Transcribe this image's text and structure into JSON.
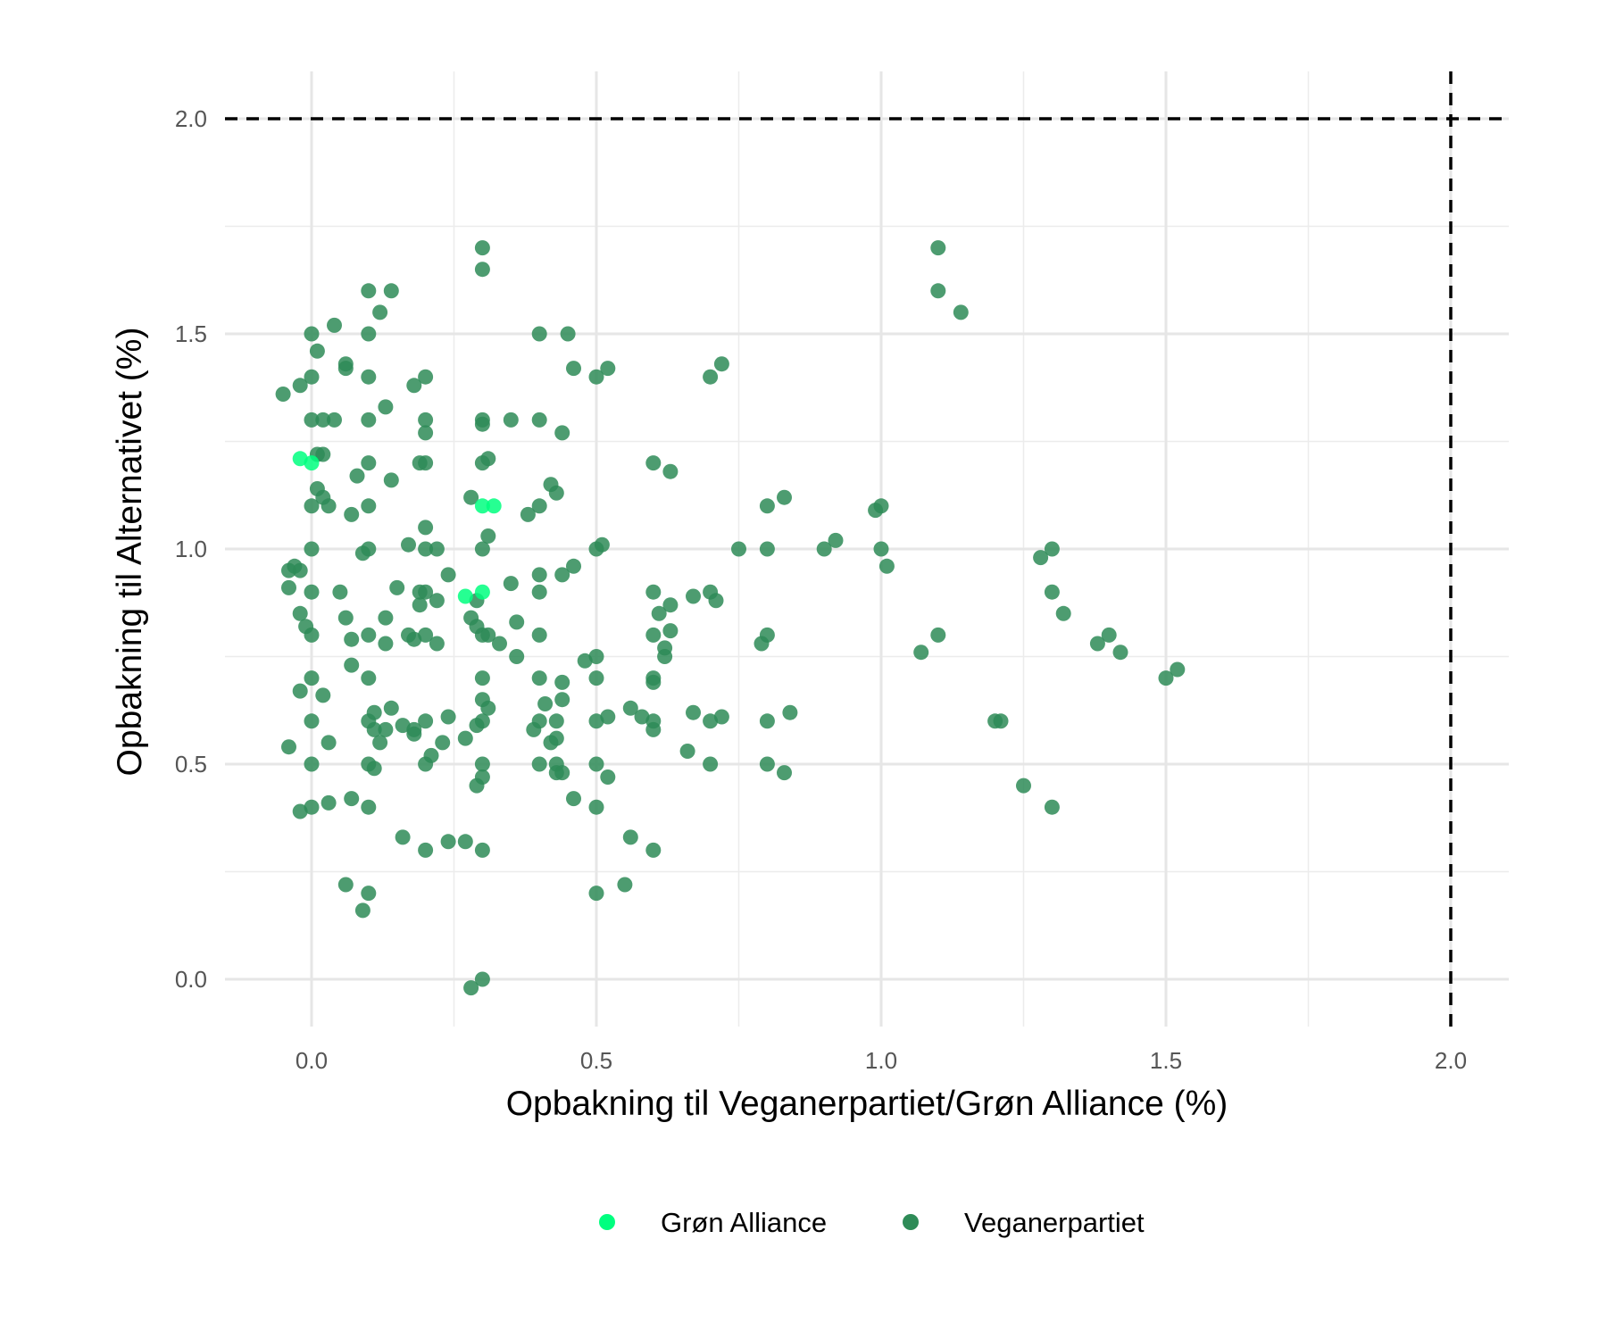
{
  "chart_data": {
    "type": "scatter",
    "xlabel": "Opbakning til Veganerpartiet/Grøn Alliance (%)",
    "ylabel": "Opbakning til Alternativet (%)",
    "xlim": [
      -0.15,
      2.1
    ],
    "ylim": [
      -0.15,
      2.1
    ],
    "x_ticks": [
      "0.0",
      "0.5",
      "1.0",
      "1.5",
      "2.0"
    ],
    "y_ticks": [
      "0.0",
      "0.5",
      "1.0",
      "1.5",
      "2.0"
    ],
    "x_tick_values": [
      0,
      0.5,
      1,
      1.5,
      2
    ],
    "y_tick_values": [
      0,
      0.5,
      1,
      1.5,
      2
    ],
    "grid": true,
    "reference_lines": [
      {
        "orientation": "horizontal",
        "value": 2.0,
        "style": "dashed"
      },
      {
        "orientation": "vertical",
        "value": 2.0,
        "style": "dashed"
      }
    ],
    "legend_position": "bottom",
    "series": [
      {
        "name": "Grøn Alliance",
        "color": "#00FF7F",
        "points": [
          [
            -0.02,
            1.21
          ],
          [
            0.0,
            1.2
          ],
          [
            0.3,
            1.1
          ],
          [
            0.32,
            1.1
          ],
          [
            0.27,
            0.89
          ],
          [
            0.3,
            0.9
          ]
        ]
      },
      {
        "name": "Veganerpartiet",
        "color": "#2E8B57",
        "points": [
          [
            -0.05,
            1.36
          ],
          [
            -0.02,
            1.38
          ],
          [
            0.0,
            1.4
          ],
          [
            0.0,
            1.5
          ],
          [
            0.01,
            1.46
          ],
          [
            0.0,
            1.3
          ],
          [
            0.02,
            1.3
          ],
          [
            0.04,
            1.3
          ],
          [
            0.01,
            1.22
          ],
          [
            0.02,
            1.22
          ],
          [
            0.01,
            1.14
          ],
          [
            0.0,
            1.1
          ],
          [
            0.02,
            1.12
          ],
          [
            0.03,
            1.1
          ],
          [
            0.0,
            1.0
          ],
          [
            -0.04,
            0.95
          ],
          [
            -0.03,
            0.96
          ],
          [
            -0.02,
            0.95
          ],
          [
            -0.04,
            0.91
          ],
          [
            0.0,
            0.9
          ],
          [
            -0.02,
            0.85
          ],
          [
            -0.01,
            0.82
          ],
          [
            0.0,
            0.8
          ],
          [
            -0.02,
            0.67
          ],
          [
            0.0,
            0.7
          ],
          [
            0.02,
            0.66
          ],
          [
            0.0,
            0.6
          ],
          [
            -0.04,
            0.54
          ],
          [
            0.03,
            0.55
          ],
          [
            0.0,
            0.5
          ],
          [
            -0.02,
            0.39
          ],
          [
            0.0,
            0.4
          ],
          [
            0.03,
            0.41
          ],
          [
            0.04,
            1.52
          ],
          [
            0.06,
            1.43
          ],
          [
            0.06,
            1.42
          ],
          [
            0.1,
            1.6
          ],
          [
            0.1,
            1.5
          ],
          [
            0.12,
            1.55
          ],
          [
            0.14,
            1.6
          ],
          [
            0.1,
            1.4
          ],
          [
            0.13,
            1.33
          ],
          [
            0.1,
            1.3
          ],
          [
            0.18,
            1.38
          ],
          [
            0.2,
            1.4
          ],
          [
            0.2,
            1.3
          ],
          [
            0.2,
            1.27
          ],
          [
            0.19,
            1.2
          ],
          [
            0.2,
            1.2
          ],
          [
            0.1,
            1.2
          ],
          [
            0.08,
            1.17
          ],
          [
            0.14,
            1.16
          ],
          [
            0.1,
            1.1
          ],
          [
            0.07,
            1.08
          ],
          [
            0.2,
            1.05
          ],
          [
            0.17,
            1.01
          ],
          [
            0.09,
            0.99
          ],
          [
            0.1,
            1.0
          ],
          [
            0.2,
            1.0
          ],
          [
            0.22,
            1.0
          ],
          [
            0.24,
            0.94
          ],
          [
            0.15,
            0.91
          ],
          [
            0.05,
            0.9
          ],
          [
            0.19,
            0.9
          ],
          [
            0.2,
            0.9
          ],
          [
            0.19,
            0.87
          ],
          [
            0.22,
            0.88
          ],
          [
            0.06,
            0.84
          ],
          [
            0.13,
            0.84
          ],
          [
            0.1,
            0.8
          ],
          [
            0.17,
            0.8
          ],
          [
            0.18,
            0.79
          ],
          [
            0.2,
            0.8
          ],
          [
            0.07,
            0.79
          ],
          [
            0.13,
            0.78
          ],
          [
            0.22,
            0.78
          ],
          [
            0.07,
            0.73
          ],
          [
            0.1,
            0.7
          ],
          [
            0.1,
            0.6
          ],
          [
            0.11,
            0.62
          ],
          [
            0.14,
            0.63
          ],
          [
            0.11,
            0.58
          ],
          [
            0.13,
            0.58
          ],
          [
            0.12,
            0.55
          ],
          [
            0.16,
            0.59
          ],
          [
            0.18,
            0.58
          ],
          [
            0.18,
            0.57
          ],
          [
            0.2,
            0.6
          ],
          [
            0.21,
            0.52
          ],
          [
            0.23,
            0.55
          ],
          [
            0.24,
            0.61
          ],
          [
            0.1,
            0.5
          ],
          [
            0.11,
            0.49
          ],
          [
            0.2,
            0.5
          ],
          [
            0.07,
            0.42
          ],
          [
            0.1,
            0.4
          ],
          [
            0.16,
            0.33
          ],
          [
            0.2,
            0.3
          ],
          [
            0.24,
            0.32
          ],
          [
            0.27,
            0.32
          ],
          [
            0.06,
            0.22
          ],
          [
            0.1,
            0.2
          ],
          [
            0.09,
            0.16
          ],
          [
            0.3,
            1.7
          ],
          [
            0.3,
            1.65
          ],
          [
            0.3,
            1.3
          ],
          [
            0.3,
            1.29
          ],
          [
            0.31,
            1.21
          ],
          [
            0.3,
            1.2
          ],
          [
            0.28,
            1.12
          ],
          [
            0.31,
            1.03
          ],
          [
            0.3,
            1.0
          ],
          [
            0.29,
            0.88
          ],
          [
            0.28,
            0.84
          ],
          [
            0.29,
            0.82
          ],
          [
            0.3,
            0.8
          ],
          [
            0.31,
            0.8
          ],
          [
            0.33,
            0.78
          ],
          [
            0.36,
            0.83
          ],
          [
            0.36,
            0.75
          ],
          [
            0.3,
            0.7
          ],
          [
            0.3,
            0.65
          ],
          [
            0.31,
            0.63
          ],
          [
            0.3,
            0.6
          ],
          [
            0.29,
            0.59
          ],
          [
            0.27,
            0.56
          ],
          [
            0.3,
            0.5
          ],
          [
            0.3,
            0.47
          ],
          [
            0.29,
            0.45
          ],
          [
            0.3,
            0.3
          ],
          [
            0.28,
            -0.02
          ],
          [
            0.3,
            0.0
          ],
          [
            0.35,
            1.3
          ],
          [
            0.4,
            1.5
          ],
          [
            0.4,
            1.3
          ],
          [
            0.44,
            1.27
          ],
          [
            0.45,
            1.5
          ],
          [
            0.46,
            1.42
          ],
          [
            0.42,
            1.15
          ],
          [
            0.43,
            1.13
          ],
          [
            0.38,
            1.08
          ],
          [
            0.4,
            1.1
          ],
          [
            0.35,
            0.92
          ],
          [
            0.4,
            0.94
          ],
          [
            0.4,
            0.9
          ],
          [
            0.44,
            0.94
          ],
          [
            0.46,
            0.96
          ],
          [
            0.4,
            0.8
          ],
          [
            0.4,
            0.7
          ],
          [
            0.44,
            0.69
          ],
          [
            0.44,
            0.65
          ],
          [
            0.41,
            0.64
          ],
          [
            0.4,
            0.6
          ],
          [
            0.39,
            0.58
          ],
          [
            0.43,
            0.6
          ],
          [
            0.42,
            0.55
          ],
          [
            0.43,
            0.56
          ],
          [
            0.4,
            0.5
          ],
          [
            0.43,
            0.5
          ],
          [
            0.43,
            0.48
          ],
          [
            0.44,
            0.48
          ],
          [
            0.46,
            0.42
          ],
          [
            0.5,
            1.4
          ],
          [
            0.52,
            1.42
          ],
          [
            0.5,
            1.0
          ],
          [
            0.51,
            1.01
          ],
          [
            0.48,
            0.74
          ],
          [
            0.5,
            0.75
          ],
          [
            0.5,
            0.7
          ],
          [
            0.5,
            0.6
          ],
          [
            0.52,
            0.61
          ],
          [
            0.56,
            0.63
          ],
          [
            0.5,
            0.5
          ],
          [
            0.52,
            0.47
          ],
          [
            0.5,
            0.4
          ],
          [
            0.56,
            0.33
          ],
          [
            0.5,
            0.2
          ],
          [
            0.55,
            0.22
          ],
          [
            0.6,
            1.2
          ],
          [
            0.63,
            1.18
          ],
          [
            0.6,
            0.9
          ],
          [
            0.63,
            0.87
          ],
          [
            0.61,
            0.85
          ],
          [
            0.6,
            0.8
          ],
          [
            0.63,
            0.81
          ],
          [
            0.62,
            0.77
          ],
          [
            0.62,
            0.75
          ],
          [
            0.6,
            0.7
          ],
          [
            0.6,
            0.69
          ],
          [
            0.58,
            0.61
          ],
          [
            0.6,
            0.6
          ],
          [
            0.6,
            0.58
          ],
          [
            0.6,
            0.3
          ],
          [
            0.7,
            1.4
          ],
          [
            0.72,
            1.43
          ],
          [
            0.67,
            0.89
          ],
          [
            0.7,
            0.9
          ],
          [
            0.71,
            0.88
          ],
          [
            0.67,
            0.62
          ],
          [
            0.7,
            0.6
          ],
          [
            0.72,
            0.61
          ],
          [
            0.66,
            0.53
          ],
          [
            0.7,
            0.5
          ],
          [
            0.75,
            1.0
          ],
          [
            0.8,
            1.1
          ],
          [
            0.83,
            1.12
          ],
          [
            0.8,
            1.0
          ],
          [
            0.8,
            0.8
          ],
          [
            0.79,
            0.78
          ],
          [
            0.8,
            0.6
          ],
          [
            0.84,
            0.62
          ],
          [
            0.8,
            0.5
          ],
          [
            0.83,
            0.48
          ],
          [
            0.9,
            1.0
          ],
          [
            0.92,
            1.02
          ],
          [
            0.99,
            1.09
          ],
          [
            1.0,
            1.1
          ],
          [
            1.0,
            1.0
          ],
          [
            1.01,
            0.96
          ],
          [
            1.1,
            1.7
          ],
          [
            1.1,
            1.6
          ],
          [
            1.14,
            1.55
          ],
          [
            1.1,
            0.8
          ],
          [
            1.07,
            0.76
          ],
          [
            1.2,
            0.6
          ],
          [
            1.21,
            0.6
          ],
          [
            1.25,
            0.45
          ],
          [
            1.3,
            1.0
          ],
          [
            1.28,
            0.98
          ],
          [
            1.3,
            0.9
          ],
          [
            1.32,
            0.85
          ],
          [
            1.3,
            0.4
          ],
          [
            1.4,
            0.8
          ],
          [
            1.38,
            0.78
          ],
          [
            1.42,
            0.76
          ],
          [
            1.5,
            0.7
          ],
          [
            1.52,
            0.72
          ]
        ]
      }
    ]
  }
}
